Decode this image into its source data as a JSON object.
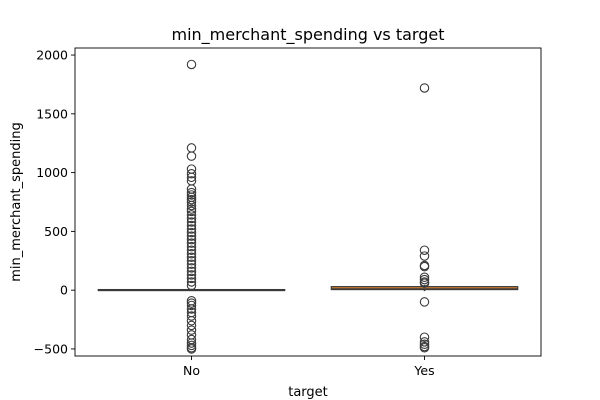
{
  "chart_data": {
    "type": "boxplot",
    "title": "min_merchant_spending vs target",
    "xlabel": "target",
    "ylabel": "min_merchant_spending",
    "ylim": [
      -560,
      2060
    ],
    "yticks": [
      -500,
      0,
      500,
      1000,
      1500,
      2000
    ],
    "categories": [
      "No",
      "Yes"
    ],
    "colors": {
      "No": "#3274a1",
      "Yes": "#e1812c",
      "line": "#3a3a3a"
    },
    "boxes": [
      {
        "category": "No",
        "whisker_low": -5,
        "q1": -2,
        "median": 0,
        "q3": 5,
        "whisker_high": 12,
        "outliers": [
          1920,
          1210,
          1140,
          1030,
          990,
          960,
          930,
          860,
          830,
          810,
          790,
          770,
          750,
          720,
          690,
          670,
          640,
          610,
          580,
          550,
          520,
          490,
          460,
          430,
          400,
          370,
          340,
          310,
          280,
          250,
          220,
          190,
          160,
          130,
          100,
          70,
          40,
          -90,
          -110,
          -130,
          -160,
          -190,
          -220,
          -260,
          -300,
          -340,
          -380,
          -420,
          -450,
          -470,
          -490,
          -500
        ]
      },
      {
        "category": "Yes",
        "whisker_low": -8,
        "q1": 5,
        "median": 10,
        "q3": 30,
        "whisker_high": 45,
        "outliers": [
          1720,
          340,
          290,
          210,
          200,
          110,
          90,
          70,
          60,
          -100,
          -400,
          -440,
          -460,
          -480,
          -490
        ]
      }
    ]
  }
}
